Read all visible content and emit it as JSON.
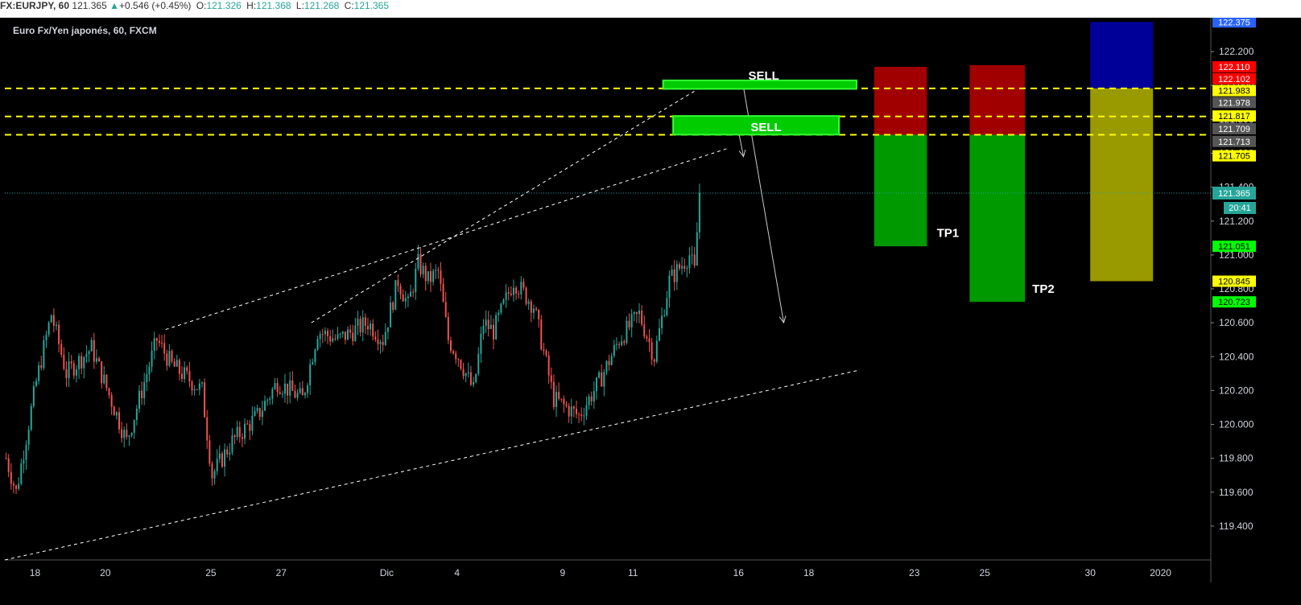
{
  "header": {
    "symbol": "FX:EURJPY, 60",
    "last": "121.365",
    "change_arrow": "▲",
    "change": "+0.546 (+0.45%)",
    "o_label": "O:",
    "o": "121.326",
    "h_label": "H:",
    "h": "121.368",
    "l_label": "L:",
    "l": "121.268",
    "c_label": "C:",
    "c": "121.365"
  },
  "legend_title": "Euro Fx/Yen japonés, 60, FXCM",
  "chart_data": {
    "type": "candlestick",
    "title": "Euro Fx/Yen japonés, 60, FXCM",
    "ylim": [
      119.2,
      122.4
    ],
    "y_ticks": [
      "122.200",
      "122.000",
      "121.800",
      "121.600",
      "121.400",
      "121.200",
      "121.000",
      "120.800",
      "120.600",
      "120.400",
      "120.200",
      "120.000",
      "119.800",
      "119.600",
      "119.400"
    ],
    "x_ticks": [
      "18",
      "20",
      "25",
      "27",
      "Dic",
      "4",
      "9",
      "11",
      "16",
      "18",
      "23",
      "25",
      "30",
      "2020"
    ],
    "x_tick_bars": [
      12,
      40,
      82,
      110,
      152,
      180,
      222,
      250,
      292,
      320,
      362,
      390,
      432,
      460
    ],
    "bar_range": [
      0,
      480
    ],
    "last_bar": 276,
    "path_anchors": [
      [
        0,
        119.8
      ],
      [
        4,
        119.6
      ],
      [
        12,
        120.25
      ],
      [
        18,
        120.65
      ],
      [
        24,
        120.3
      ],
      [
        34,
        120.45
      ],
      [
        48,
        119.9
      ],
      [
        60,
        120.5
      ],
      [
        66,
        120.35
      ],
      [
        78,
        120.2
      ],
      [
        82,
        119.7
      ],
      [
        90,
        119.9
      ],
      [
        100,
        120.05
      ],
      [
        108,
        120.25
      ],
      [
        118,
        120.15
      ],
      [
        124,
        120.55
      ],
      [
        132,
        120.5
      ],
      [
        144,
        120.6
      ],
      [
        150,
        120.5
      ],
      [
        156,
        120.85
      ],
      [
        160,
        120.7
      ],
      [
        164,
        120.95
      ],
      [
        168,
        120.85
      ],
      [
        172,
        120.9
      ],
      [
        176,
        120.5
      ],
      [
        180,
        120.4
      ],
      [
        186,
        120.2
      ],
      [
        190,
        120.6
      ],
      [
        194,
        120.55
      ],
      [
        202,
        120.85
      ],
      [
        210,
        120.7
      ],
      [
        218,
        120.15
      ],
      [
        228,
        120.05
      ],
      [
        236,
        120.25
      ],
      [
        244,
        120.5
      ],
      [
        252,
        120.65
      ],
      [
        258,
        120.4
      ],
      [
        264,
        120.85
      ],
      [
        272,
        121.0
      ],
      [
        274,
        120.9
      ],
      [
        276,
        121.365
      ]
    ],
    "current_price": "121.365",
    "countdown": "20:41",
    "price_tags": [
      {
        "price": 122.375,
        "label": "122.375",
        "bg": "#2962ff",
        "fg": "#ffffff"
      },
      {
        "price": 122.11,
        "label": "122.110",
        "bg": "#ff0000",
        "fg": "#ffffff"
      },
      {
        "price": 122.04,
        "label": "122.102",
        "bg": "#ff0000",
        "fg": "#ffffff"
      },
      {
        "price": 121.97,
        "label": "121.983",
        "bg": "#ffff00",
        "fg": "#000000"
      },
      {
        "price": 121.9,
        "label": "121.978",
        "bg": "#555555",
        "fg": "#ffffff"
      },
      {
        "price": 121.82,
        "label": "121.817",
        "bg": "#ffff00",
        "fg": "#000000"
      },
      {
        "price": 121.745,
        "label": "121.709",
        "bg": "#555555",
        "fg": "#ffffff"
      },
      {
        "price": 121.67,
        "label": "121.713",
        "bg": "#555555",
        "fg": "#ffffff"
      },
      {
        "price": 121.585,
        "label": "121.705",
        "bg": "#ffff00",
        "fg": "#000000"
      },
      {
        "price": 121.051,
        "label": "121.051",
        "bg": "#00ff00",
        "fg": "#000000"
      },
      {
        "price": 120.845,
        "label": "120.845",
        "bg": "#ffff00",
        "fg": "#000000"
      },
      {
        "price": 120.723,
        "label": "120.723",
        "bg": "#00ff00",
        "fg": "#000000"
      }
    ],
    "levels": [
      121.983,
      121.817,
      121.709
    ],
    "trendlines": [
      {
        "from": [
          64,
          120.56
        ],
        "to": [
          288,
          121.63
        ]
      },
      {
        "from": [
          122,
          120.6
        ],
        "to": [
          276,
          121.98
        ]
      },
      {
        "from": [
          0,
          119.2
        ],
        "to": [
          340,
          120.32
        ]
      }
    ],
    "arrows": [
      {
        "from": [
          294,
          121.99
        ],
        "to": [
          310,
          120.6
        ]
      },
      {
        "from": [
          292,
          121.73
        ],
        "to": [
          294,
          121.58
        ]
      }
    ],
    "sell_zones": [
      {
        "label": "SELL",
        "x0": 262,
        "x1": 339,
        "top": 122.03,
        "bottom": 121.98
      },
      {
        "label": "SELL",
        "x0": 266,
        "x1": 332,
        "top": 121.82,
        "bottom": 121.71
      }
    ],
    "boxes": [
      {
        "x0": 346,
        "x1": 367,
        "top": 122.11,
        "bottom": 121.709,
        "color": "#a00000"
      },
      {
        "x0": 346,
        "x1": 367,
        "top": 121.709,
        "bottom": 121.051,
        "color": "#009900"
      },
      {
        "x0": 384,
        "x1": 406,
        "top": 122.12,
        "bottom": 121.709,
        "color": "#a00000"
      },
      {
        "x0": 384,
        "x1": 406,
        "top": 121.709,
        "bottom": 120.723,
        "color": "#009900"
      },
      {
        "x0": 432,
        "x1": 457,
        "top": 122.375,
        "bottom": 121.983,
        "color": "#000099"
      },
      {
        "x0": 432,
        "x1": 457,
        "top": 121.983,
        "bottom": 120.845,
        "color": "#999900"
      }
    ],
    "targets": [
      {
        "label": "TP1",
        "x": 369,
        "price": 121.13
      },
      {
        "label": "TP2",
        "x": 407,
        "price": 120.8
      }
    ]
  }
}
